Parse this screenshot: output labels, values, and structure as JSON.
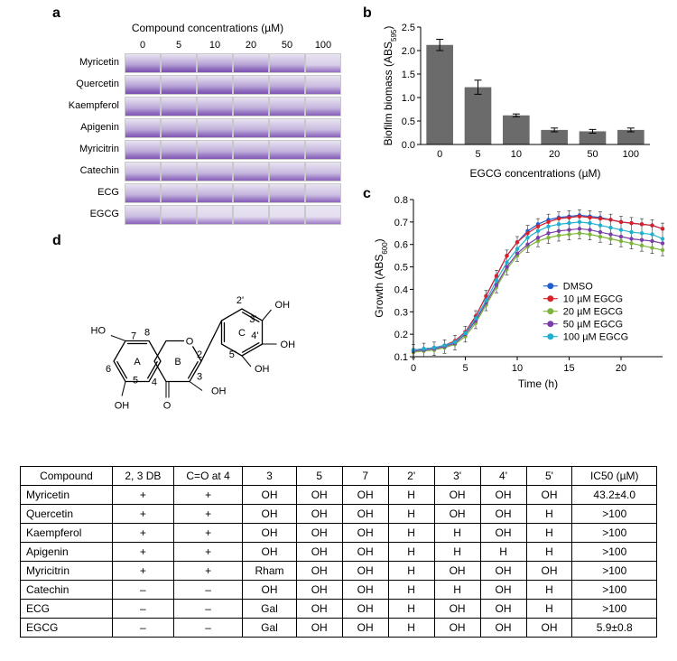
{
  "panel_a": {
    "title": "Compound concentrations (µM)",
    "concentrations": [
      "0",
      "5",
      "10",
      "20",
      "50",
      "100"
    ],
    "compounds": [
      "Myricetin",
      "Quercetin",
      "Kaempferol",
      "Apigenin",
      "Myricitrin",
      "Catechin",
      "ECG",
      "EGCG"
    ],
    "base_color": "#7a53b3",
    "intensity": [
      [
        0.85,
        0.9,
        0.88,
        0.85,
        0.7,
        0.4
      ],
      [
        0.9,
        0.88,
        0.88,
        0.85,
        0.8,
        0.6
      ],
      [
        0.8,
        0.8,
        0.78,
        0.75,
        0.7,
        0.65
      ],
      [
        0.8,
        0.78,
        0.75,
        0.72,
        0.68,
        0.6
      ],
      [
        0.78,
        0.78,
        0.76,
        0.74,
        0.7,
        0.68
      ],
      [
        0.65,
        0.65,
        0.65,
        0.65,
        0.63,
        0.6
      ],
      [
        0.7,
        0.7,
        0.7,
        0.68,
        0.65,
        0.55
      ],
      [
        0.6,
        0.4,
        0.3,
        0.25,
        0.22,
        0.22
      ]
    ]
  },
  "panel_b": {
    "type": "bar",
    "xlabel": "EGCG concentrations (µM)",
    "ylabel_html": "Biofilm biomass (ABS<tspan baseline-shift='sub' font-size='8'>595</tspan>)",
    "categories": [
      "0",
      "5",
      "10",
      "20",
      "50",
      "100"
    ],
    "values": [
      2.12,
      1.22,
      0.62,
      0.31,
      0.28,
      0.31
    ],
    "errors": [
      0.12,
      0.15,
      0.03,
      0.04,
      0.04,
      0.04
    ],
    "bar_color": "#6b6b6b",
    "yticks": [
      0,
      0.5,
      1.0,
      1.5,
      2.0,
      2.5
    ],
    "ylim": [
      0,
      2.5
    ],
    "background": "#ffffff",
    "tick_fontsize": 11,
    "label_fontsize": 12,
    "axis_color": "#000000"
  },
  "panel_c": {
    "type": "line",
    "xlabel": "Time (h)",
    "ylabel_html": "Growth (ABS<tspan baseline-shift='sub' font-size='8'>600</tspan>)",
    "xlim": [
      0,
      24
    ],
    "ylim": [
      0.1,
      0.8
    ],
    "xticks": [
      0,
      5,
      10,
      15,
      20
    ],
    "yticks": [
      0.1,
      0.2,
      0.3,
      0.4,
      0.5,
      0.6,
      0.7,
      0.8
    ],
    "legend": [
      "DMSO",
      "10 µM EGCG",
      "20 µM EGCG",
      "50 µM EGCG",
      "100 µM EGCG"
    ],
    "legend_colors": [
      "#1f5fd0",
      "#d8202a",
      "#7db53c",
      "#7a3fa8",
      "#1fb0d0"
    ],
    "time": [
      0,
      1,
      2,
      3,
      4,
      5,
      6,
      7,
      8,
      9,
      10,
      11,
      12,
      13,
      14,
      15,
      16,
      17,
      18,
      19,
      20,
      21,
      22,
      23,
      24
    ],
    "series": {
      "DMSO": [
        0.13,
        0.135,
        0.14,
        0.15,
        0.17,
        0.21,
        0.28,
        0.37,
        0.46,
        0.55,
        0.61,
        0.66,
        0.69,
        0.71,
        0.72,
        0.725,
        0.73,
        0.725,
        0.72,
        0.71,
        0.7,
        0.695,
        0.69,
        0.685,
        0.67
      ],
      "10 µM EGCG": [
        0.13,
        0.135,
        0.14,
        0.15,
        0.17,
        0.21,
        0.28,
        0.37,
        0.46,
        0.55,
        0.61,
        0.65,
        0.68,
        0.7,
        0.715,
        0.72,
        0.725,
        0.72,
        0.715,
        0.71,
        0.7,
        0.695,
        0.69,
        0.685,
        0.67
      ],
      "20 µM EGCG": [
        0.12,
        0.125,
        0.13,
        0.14,
        0.155,
        0.19,
        0.25,
        0.33,
        0.41,
        0.49,
        0.55,
        0.59,
        0.615,
        0.63,
        0.64,
        0.645,
        0.65,
        0.645,
        0.635,
        0.625,
        0.615,
        0.605,
        0.595,
        0.585,
        0.575
      ],
      "50 µM EGCG": [
        0.125,
        0.13,
        0.135,
        0.145,
        0.16,
        0.2,
        0.26,
        0.34,
        0.42,
        0.5,
        0.56,
        0.6,
        0.63,
        0.65,
        0.66,
        0.665,
        0.67,
        0.665,
        0.655,
        0.645,
        0.635,
        0.625,
        0.62,
        0.615,
        0.605
      ],
      "100 µM EGCG": [
        0.13,
        0.135,
        0.14,
        0.15,
        0.165,
        0.205,
        0.27,
        0.35,
        0.44,
        0.52,
        0.58,
        0.63,
        0.66,
        0.68,
        0.69,
        0.695,
        0.7,
        0.695,
        0.685,
        0.675,
        0.665,
        0.655,
        0.65,
        0.645,
        0.625
      ]
    },
    "error_bar": 0.025,
    "marker_radius": 2.2,
    "line_width": 1.2,
    "tick_fontsize": 11,
    "label_fontsize": 12,
    "axis_color": "#000000",
    "legend_fontsize": 11
  },
  "panel_d": {
    "ring_labels": [
      "A",
      "B",
      "C"
    ],
    "position_labels": [
      "2",
      "3",
      "4",
      "5",
      "6",
      "7",
      "8",
      "2'",
      "3'",
      "4'",
      "5'"
    ],
    "atom_labels": [
      "O",
      "OH",
      "OH",
      "HO",
      "OH",
      "OH",
      "OH",
      "O"
    ],
    "line_color": "#000000"
  },
  "table": {
    "headers": [
      "Compound",
      "2, 3 DB",
      "C=O at 4",
      "3",
      "5",
      "7",
      "2'",
      "3'",
      "4'",
      "5'",
      "IC50 (µM)"
    ],
    "rows": [
      [
        "Myricetin",
        "+",
        "+",
        "OH",
        "OH",
        "OH",
        "H",
        "OH",
        "OH",
        "OH",
        "43.2±4.0"
      ],
      [
        "Quercetin",
        "+",
        "+",
        "OH",
        "OH",
        "OH",
        "H",
        "OH",
        "OH",
        "H",
        ">100"
      ],
      [
        "Kaempferol",
        "+",
        "+",
        "OH",
        "OH",
        "OH",
        "H",
        "H",
        "OH",
        "H",
        ">100"
      ],
      [
        "Apigenin",
        "+",
        "+",
        "OH",
        "OH",
        "OH",
        "H",
        "H",
        "H",
        "H",
        ">100"
      ],
      [
        "Myricitrin",
        "+",
        "+",
        "Rham",
        "OH",
        "OH",
        "H",
        "OH",
        "OH",
        "OH",
        ">100"
      ],
      [
        "Catechin",
        "–",
        "–",
        "OH",
        "OH",
        "OH",
        "H",
        "H",
        "OH",
        "H",
        ">100"
      ],
      [
        "ECG",
        "–",
        "–",
        "Gal",
        "OH",
        "OH",
        "H",
        "OH",
        "OH",
        "H",
        ">100"
      ],
      [
        "EGCG",
        "–",
        "–",
        "Gal",
        "OH",
        "OH",
        "H",
        "OH",
        "OH",
        "OH",
        "5.9±0.8"
      ]
    ],
    "col_widths_pct": [
      12,
      8,
      9,
      7,
      6,
      6,
      6,
      6,
      6,
      6,
      11
    ],
    "border_color": "#000000",
    "fontsize": 12,
    "header_align": "center",
    "first_col_align": "left"
  },
  "labels": {
    "a": "a",
    "b": "b",
    "c": "c",
    "d": "d"
  }
}
